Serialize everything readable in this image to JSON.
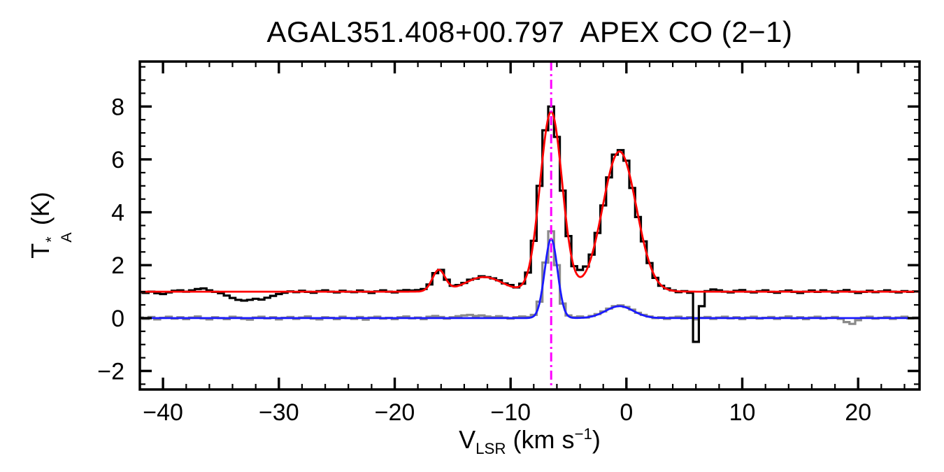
{
  "labels": {
    "title": "AGAL351.408+00.797  APEX CO (2−1)",
    "x_axis": {
      "symbol": "V",
      "subscript": "LSR",
      "unit_prefix": " (km s",
      "exponent": "−1",
      "unit_suffix": ")"
    },
    "y_axis": {
      "symbol": "T",
      "superscript": "*",
      "subscript": "A",
      "unit": " (K)"
    }
  },
  "chart_data": {
    "type": "line",
    "title": "AGAL351.408+00.797  APEX CO (2−1)",
    "xlabel": "V_LSR (km s^-1)",
    "ylabel": "T_A^* (K)",
    "xlim": [
      -42,
      25.3
    ],
    "ylim": [
      -2.7,
      9.7
    ],
    "xticks": [
      -40,
      -30,
      -20,
      -10,
      0,
      10,
      20
    ],
    "yticks": [
      -2,
      0,
      2,
      4,
      6,
      8
    ],
    "x_minor_step": 2,
    "y_minor_step": 0.5,
    "grid": "off",
    "legend": "none",
    "axis_color": "#000000",
    "vline": {
      "x": -6.5,
      "color": "#ff00ff",
      "style": "dash-dot",
      "note": "systemic velocity marker"
    },
    "series": [
      {
        "name": "spectrum-black-histogram",
        "color": "#000000",
        "style": "histogram",
        "line_width": 3.2,
        "x_start": -42,
        "dx": 0.5,
        "values": [
          0.98,
          0.95,
          1.0,
          0.94,
          0.91,
          0.97,
          1.03,
          1.05,
          1.0,
          1.05,
          1.1,
          1.12,
          1.05,
          0.99,
          0.94,
          0.85,
          0.76,
          0.69,
          0.66,
          0.69,
          0.73,
          0.7,
          0.77,
          0.84,
          0.91,
          0.96,
          1.01,
          0.98,
          1.03,
          0.99,
          0.96,
          1.02,
          1.05,
          1.0,
          0.97,
          1.03,
          1.0,
          0.98,
          1.04,
          1.0,
          0.95,
          1.01,
          1.05,
          1.0,
          0.97,
          1.03,
          1.06,
          1.04,
          1.06,
          1.1,
          1.27,
          1.7,
          1.82,
          1.45,
          1.22,
          1.25,
          1.33,
          1.45,
          1.49,
          1.58,
          1.55,
          1.5,
          1.43,
          1.31,
          1.25,
          1.16,
          1.3,
          1.72,
          2.92,
          5.0,
          7.1,
          8.0,
          6.85,
          4.82,
          3.1,
          1.96,
          1.82,
          1.95,
          2.4,
          3.22,
          4.26,
          5.32,
          6.18,
          6.35,
          5.95,
          4.92,
          3.82,
          2.9,
          2.08,
          1.52,
          1.22,
          1.12,
          1.05,
          0.98,
          1.02,
          0.96,
          -0.9,
          0.45,
          1.02,
          1.08,
          1.05,
          1.0,
          0.97,
          1.03,
          1.06,
          1.0,
          0.97,
          1.02,
          1.05,
          0.99,
          0.96,
          1.01,
          1.04,
          0.99,
          0.95,
          1.0,
          1.04,
          0.99,
          1.05,
          1.01,
          0.97,
          1.02,
          1.06,
          1.0,
          0.95,
          0.99,
          1.03,
          0.98,
          1.01,
          1.05,
          1.0,
          0.97,
          1.02,
          0.99,
          1.01
        ]
      },
      {
        "name": "spectrum-gray-histogram",
        "color": "#8a8a8a",
        "style": "histogram",
        "line_width": 3.2,
        "x_start": -42,
        "dx": 0.5,
        "values": [
          0.02,
          -0.03,
          0.04,
          -0.05,
          0.01,
          0.05,
          -0.02,
          0.03,
          -0.04,
          0.02,
          0.06,
          -0.01,
          -0.05,
          0.03,
          0.0,
          -0.04,
          0.05,
          0.02,
          -0.03,
          -0.06,
          0.02,
          0.05,
          -0.01,
          0.03,
          -0.05,
          0.01,
          0.04,
          -0.03,
          0.02,
          0.06,
          -0.02,
          -0.05,
          0.03,
          0.01,
          -0.04,
          0.05,
          0.0,
          -0.03,
          0.04,
          -0.06,
          0.02,
          0.05,
          -0.02,
          0.01,
          -0.04,
          0.03,
          0.06,
          -0.01,
          0.02,
          -0.04,
          0.05,
          0.08,
          0.04,
          -0.02,
          0.03,
          0.07,
          0.1,
          0.12,
          0.08,
          0.1,
          0.06,
          0.03,
          0.07,
          0.02,
          -0.02,
          0.03,
          0.06,
          0.04,
          0.12,
          0.62,
          2.1,
          3.28,
          2.0,
          0.55,
          0.1,
          0.03,
          0.06,
          0.02,
          0.08,
          0.15,
          0.25,
          0.36,
          0.45,
          0.48,
          0.42,
          0.32,
          0.2,
          0.12,
          0.06,
          0.0,
          0.03,
          -0.03,
          0.02,
          0.05,
          -0.02,
          0.03,
          -0.05,
          0.01,
          0.04,
          -0.03,
          0.02,
          0.05,
          -0.01,
          0.03,
          -0.04,
          0.02,
          0.05,
          -0.02,
          0.01,
          0.04,
          -0.03,
          0.02,
          0.06,
          -0.01,
          0.03,
          -0.04,
          0.02,
          0.05,
          -0.02,
          0.01,
          0.04,
          -0.03,
          -0.15,
          -0.22,
          -0.08,
          0.02,
          0.05,
          -0.02,
          0.01,
          0.04,
          -0.03,
          0.02,
          0.05,
          -0.01,
          0.02
        ]
      }
    ],
    "fits": [
      {
        "name": "fit-red-gaussian-model",
        "color": "#ff0000",
        "line_width": 2.8,
        "baseline": 1.0,
        "gaussians": [
          [
            0.8,
            -16.2,
            0.55
          ],
          [
            0.55,
            -12.3,
            1.6
          ],
          [
            6.8,
            -6.5,
            0.95
          ],
          [
            5.3,
            -0.6,
            1.45
          ]
        ]
      },
      {
        "name": "fit-blue-gaussian-model",
        "color": "#1a1aff",
        "line_width": 2.8,
        "baseline": 0.0,
        "gaussians": [
          [
            3.0,
            -6.5,
            0.55
          ],
          [
            0.45,
            -0.6,
            1.2
          ]
        ]
      }
    ]
  }
}
